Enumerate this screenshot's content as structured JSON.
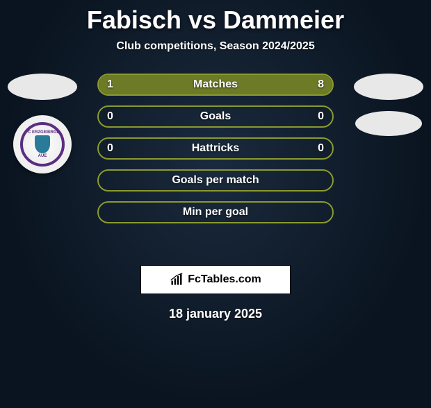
{
  "title": "Fabisch vs Dammeier",
  "subtitle": "Club competitions, Season 2024/2025",
  "date": "18 january 2025",
  "watermark": "FcTables.com",
  "colors": {
    "bar_border": "#8a9a30",
    "bar_fill": "#6d7a26",
    "badge_bg": "#e8e8e8",
    "club_primary": "#5a2d82",
    "club_secondary": "#2a7a9a"
  },
  "badges": {
    "left": {
      "national_visible": true,
      "club_visible": true,
      "club_text_top": "FC ERZGEBIRGE",
      "club_text_bottom": "AUE"
    },
    "right": {
      "national_visible": true,
      "club_visible": true
    }
  },
  "bars": [
    {
      "label": "Matches",
      "left": "1",
      "right": "8",
      "left_fill_pct": 11,
      "right_fill_pct": 89,
      "show_values": true
    },
    {
      "label": "Goals",
      "left": "0",
      "right": "0",
      "left_fill_pct": 0,
      "right_fill_pct": 0,
      "show_values": true
    },
    {
      "label": "Hattricks",
      "left": "0",
      "right": "0",
      "left_fill_pct": 0,
      "right_fill_pct": 0,
      "show_values": true
    },
    {
      "label": "Goals per match",
      "left": "",
      "right": "",
      "left_fill_pct": 0,
      "right_fill_pct": 0,
      "show_values": false
    },
    {
      "label": "Min per goal",
      "left": "",
      "right": "",
      "left_fill_pct": 0,
      "right_fill_pct": 0,
      "show_values": false
    }
  ]
}
